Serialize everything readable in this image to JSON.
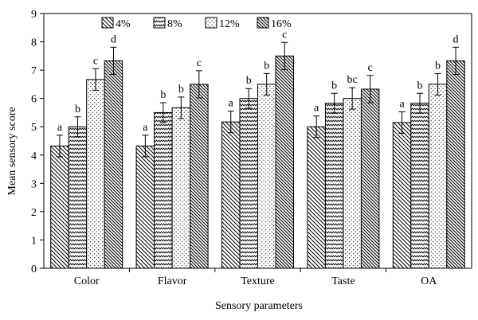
{
  "chart_data": {
    "type": "bar",
    "xlabel": "Sensory parameters",
    "ylabel": "Mean sensory score",
    "ylim": [
      0,
      9
    ],
    "yticks": [
      0,
      1,
      2,
      3,
      4,
      5,
      6,
      7,
      8,
      9
    ],
    "grid": false,
    "legend_position": "top",
    "categories": [
      "Color",
      "Flavor",
      "Texture",
      "Taste",
      "OA"
    ],
    "series": [
      {
        "name": "4%",
        "pattern": "diagonal-backslash",
        "values": [
          4.32,
          4.32,
          5.17,
          5.0,
          5.15
        ],
        "errors": [
          0.38,
          0.38,
          0.38,
          0.38,
          0.38
        ],
        "letters": [
          "a",
          "a",
          "a",
          "a",
          "a"
        ]
      },
      {
        "name": "8%",
        "pattern": "zigzag",
        "values": [
          5.0,
          5.5,
          6.0,
          5.83,
          5.83
        ],
        "errors": [
          0.35,
          0.35,
          0.35,
          0.35,
          0.35
        ],
        "letters": [
          "b",
          "b",
          "b",
          "b",
          "b"
        ]
      },
      {
        "name": "12%",
        "pattern": "dots",
        "values": [
          6.67,
          5.67,
          6.5,
          6.0,
          6.5
        ],
        "errors": [
          0.38,
          0.38,
          0.38,
          0.38,
          0.38
        ],
        "letters": [
          "c",
          "b",
          "b",
          "bc",
          "b"
        ]
      },
      {
        "name": "16%",
        "pattern": "diagonal-backslash-dense",
        "values": [
          7.33,
          6.5,
          7.5,
          6.33,
          7.33
        ],
        "errors": [
          0.48,
          0.48,
          0.48,
          0.48,
          0.48
        ],
        "letters": [
          "d",
          "c",
          "c",
          "c",
          "d"
        ]
      }
    ]
  }
}
